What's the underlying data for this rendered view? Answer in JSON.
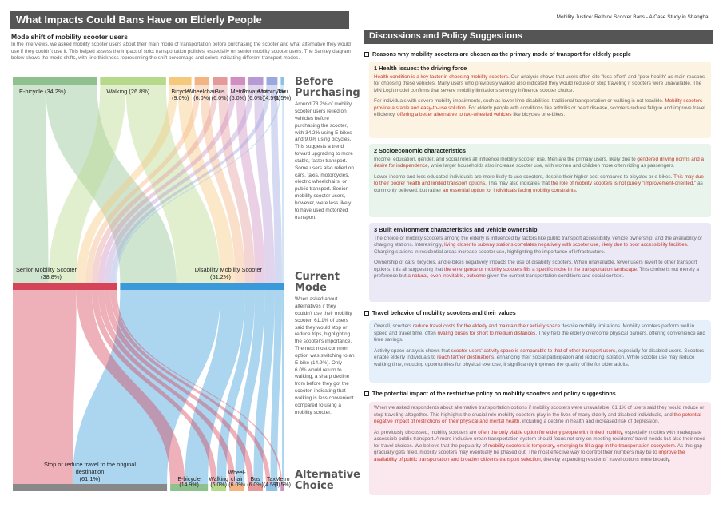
{
  "left": {
    "title": "What Impacts Could Bans Have on Elderly People",
    "mode_title": "Mode shift of mobility scooter users",
    "intro": "In the interviews, we asked mobility scooter users about their main mode of transportation before purchasing the scooter and what alternative they would use if they couldn't use it. This helped assess the impact of strict transportation policies, especially on senior mobility scooter users. The Sankey diagram below shows the mode shifts, with line thickness representing the shift percentage and colors indicating different transport modes.",
    "before_head": "Before Purchasing",
    "before_text": "Around 73.2% of mobility scooter users relied on vehicles before purchasing the scooter, with 34.2% using E-bikes and 9.0% using bicycles. This suggests a trend toward upgrading to more stable, faster transport. Some users also relied on cars, taxis, motorcycles, electric wheelchairs, or public transport. Senior mobility scooter users, however, were less likely to have used motorized transport.",
    "current_head": "Current Mode",
    "current_text": "When asked about alternatives if they couldn't use their mobility scooter, 61.1% of users said they would stop or reduce trips, highlighting the scooter's importance. The next most common option was switching to an E-bike (14.9%). Only 6.0% would return to walking, a sharp decline from before they got the scooter, indicating that walking is less convenient compared to using a mobility scooter.",
    "alt_head": "Alternative Choice"
  },
  "sankey": {
    "top": [
      {
        "name": "E-bicycle",
        "pct": "(34.2%)",
        "value": 34.2,
        "color": "#8fc18f"
      },
      {
        "name": "Walking",
        "pct": "(26.8%)",
        "value": 26.8,
        "color": "#b7d98c"
      },
      {
        "name": "Bicycle",
        "pct": "(9.0%)",
        "value": 9.0,
        "color": "#f5c97c"
      },
      {
        "name": "Wheelchair",
        "pct": "(6.0%)",
        "value": 6.0,
        "color": "#f2b483"
      },
      {
        "name": "Bus",
        "pct": "(6.0%)",
        "value": 6.0,
        "color": "#e59a9a"
      },
      {
        "name": "Metro",
        "pct": "(6.0%)",
        "value": 6.0,
        "color": "#d08fc0"
      },
      {
        "name": "Private car",
        "pct": "(6.0%)",
        "value": 6.0,
        "color": "#b79ad3"
      },
      {
        "name": "Motorcycle",
        "pct": "(4.5%)",
        "value": 4.5,
        "color": "#9aa8e0"
      },
      {
        "name": "Taxi",
        "pct": "(1.5%)",
        "value": 1.5,
        "color": "#8fc1e8"
      }
    ],
    "middle": [
      {
        "name": "Senior Mobility Scooter",
        "pct": "(38.8%)",
        "value": 38.8,
        "color": "#d6445a"
      },
      {
        "name": "Disability Mobility Scooter",
        "pct": "(61.2%)",
        "value": 61.2,
        "color": "#3a9ad9"
      }
    ],
    "bottom": [
      {
        "name": "Stop or reduce travel to the original destination",
        "pct": "(61.1%)",
        "value": 61.1,
        "color": "#888888"
      },
      {
        "name": "E-bicycle",
        "pct": "(14.9%)",
        "value": 14.9,
        "color": "#8fc18f"
      },
      {
        "name": "Walking",
        "pct": "(6.0%)",
        "value": 6.0,
        "color": "#b7d98c"
      },
      {
        "name": "Wheel-chair",
        "pct": "(6.0%)",
        "value": 6.0,
        "color": "#f2b483"
      },
      {
        "name": "Bus",
        "pct": "(6.0%)",
        "value": 6.0,
        "color": "#e59a9a"
      },
      {
        "name": "Taxi",
        "pct": "(4.5%)",
        "value": 4.5,
        "color": "#8fc1e8"
      },
      {
        "name": "Metro",
        "pct": "(1.5%)",
        "value": 1.5,
        "color": "#d08fc0"
      }
    ]
  },
  "right": {
    "header": "Mobility Justice: Rethink Scooter Bans - A Case Study in Shanghai",
    "title": "Discussions and Policy Suggestions",
    "sec1": "Reasons why mobility scooters are chosen as the primary mode of transport for elderly people",
    "b1_title": "1 Health issues: the driving force",
    "b1_p1_a": "Health condition is a key factor in choosing mobility scooters.",
    "b1_p1_b": " Our analysis shows that users often cite \"less effort\" and \"poor health\" as main reasons for choosing these vehicles. Many users who previously walked also indicated they would reduce or stop traveling if scooters were unavailable. The MN Logit model confirms that severe mobility limitations strongly influence scooter choice.",
    "b1_p2_a": "For individuals with severe mobility impairments, such as lower limb disabilities, traditional transportation or walking is not feasible. ",
    "b1_p2_b": "Mobility scooters provide a stable and easy-to-use solution.",
    "b1_p2_c": " For elderly people with conditions like arthritis or heart disease, scooters reduce fatigue and improve travel efficiency, ",
    "b1_p2_d": "offering a better alternative to two-wheeled vehicles",
    "b1_p2_e": " like bicycles or e-bikes.",
    "b2_title": "2 Socioeconomic characteristics",
    "b2_p1_a": "Income, education, gender, and social roles all influence mobility scooter use. Men are the primary users, likely due to ",
    "b2_p1_b": "gendered driving norms and a desire for independence",
    "b2_p1_c": ", while larger households also increase scooter use, with women and children more often riding as passengers.",
    "b2_p2_a": "Lower-income and less-educated individuals are more likely to use scooters, despite their higher cost compared to bicycles or e-bikes. ",
    "b2_p2_b": "This may due to their poorer health and limited transport options.",
    "b2_p2_c": " This may also indicates that ",
    "b2_p2_d": "the role of mobility scooters is not purely \"improvement-oriented,\"",
    "b2_p2_e": " as commonly believed, but rather ",
    "b2_p2_f": "an essential option for individuals facing mobility constraints.",
    "b3_title": "3 Built environment characteristics and vehicle ownership",
    "b3_p1_a": "The choice of mobility scooters among the elderly is influenced by factors like public transport accessibility, vehicle ownership, and the availability of charging stations. Interestingly, ",
    "b3_p1_b": "living closer to subway stations correlates negatively with scooter use, likely due to poor accessibility facilities.",
    "b3_p1_c": " Charging stations in residential areas increase scooter use, highlighting the importance of infrastructure.",
    "b3_p2_a": "Ownership of cars, bicycles, and e-bikes negatively impacts the use of disability scooters. When unavailable, fewer users revert to other transport options, this all suggesting that ",
    "b3_p2_b": "the emergence of mobility scooters fills a specific niche in the transportation landscape.",
    "b3_p2_c": " This choice is not merely a preference but ",
    "b3_p2_d": "a natural, even inevitable, outcome",
    "b3_p2_e": " given the current transportation conditions and social context.",
    "sec2": "Travel behavior of mobility scooters and their values",
    "b4_p1_a": "Overall, scooters ",
    "b4_p1_b": "reduce travel costs for the elderly and maintain their activity space",
    "b4_p1_c": " despite mobility limitations. Mobility scooters perform well in speed and travel time, often ",
    "b4_p1_d": "rivaling buses for short to medium distances.",
    "b4_p1_e": " They help the elderly overcome physical barriers, offering convenience and time savings.",
    "b4_p2_a": "Activity space analysis shows that ",
    "b4_p2_b": "scooter users' activity space is comparable to that of other transport users",
    "b4_p2_c": ", especially for disabled users. Scooters enable elderly individuals to ",
    "b4_p2_d": "reach farther destinations",
    "b4_p2_e": ", enhancing their social participation and reducing isolation. While scooter use may reduce walking time, reducing opportunities for physical exercise, it significantly improves the quality of life for older adults.",
    "sec3": "The potential impact of the restrictive policy on mobility scooters and policy suggestions",
    "b5_p1_a": "When we asked respondents about alternative transportation options if mobility scooters were unavailable, 61.1% of users said they would reduce or stop traveling altogether. This highlights the crucial role mobility scooters play in the lives of many elderly and disabled individuals, and ",
    "b5_p1_b": "the potential negative impact of restrictions on their physical and mental health",
    "b5_p1_c": ", including a decline in health and increased risk of depression.",
    "b5_p2_a": "As previously discussed, mobility scooters are ",
    "b5_p2_b": "often the only viable option for elderly people with limited mobility",
    "b5_p2_c": ", especially in cities with inadequate accessible public transport. A more inclusive urban transportation system should focus not only on meeting residents' travel needs but also their need for travel choices. We believe that the popularity of ",
    "b5_p2_d": "mobility scooters is temporary, emerging to fill a gap in the transportation ecosystem.",
    "b5_p2_e": " As this gap gradually gets filled, mobility scooters may eventually be phased out. The most effective way to control their numbers may be to ",
    "b5_p2_f": "improve the availability of public transportation and broaden citizen's transport selection",
    "b5_p2_g": ", thereby expanding residents' travel options more broadly."
  },
  "colors": {
    "title_bar": "#555555",
    "highlight": "#c0392b",
    "box1": "#fdf3e3",
    "box2": "#e9f4ec",
    "box3": "#ece9f6",
    "box4": "#e6f0fa",
    "box5": "#fbe8ee"
  }
}
